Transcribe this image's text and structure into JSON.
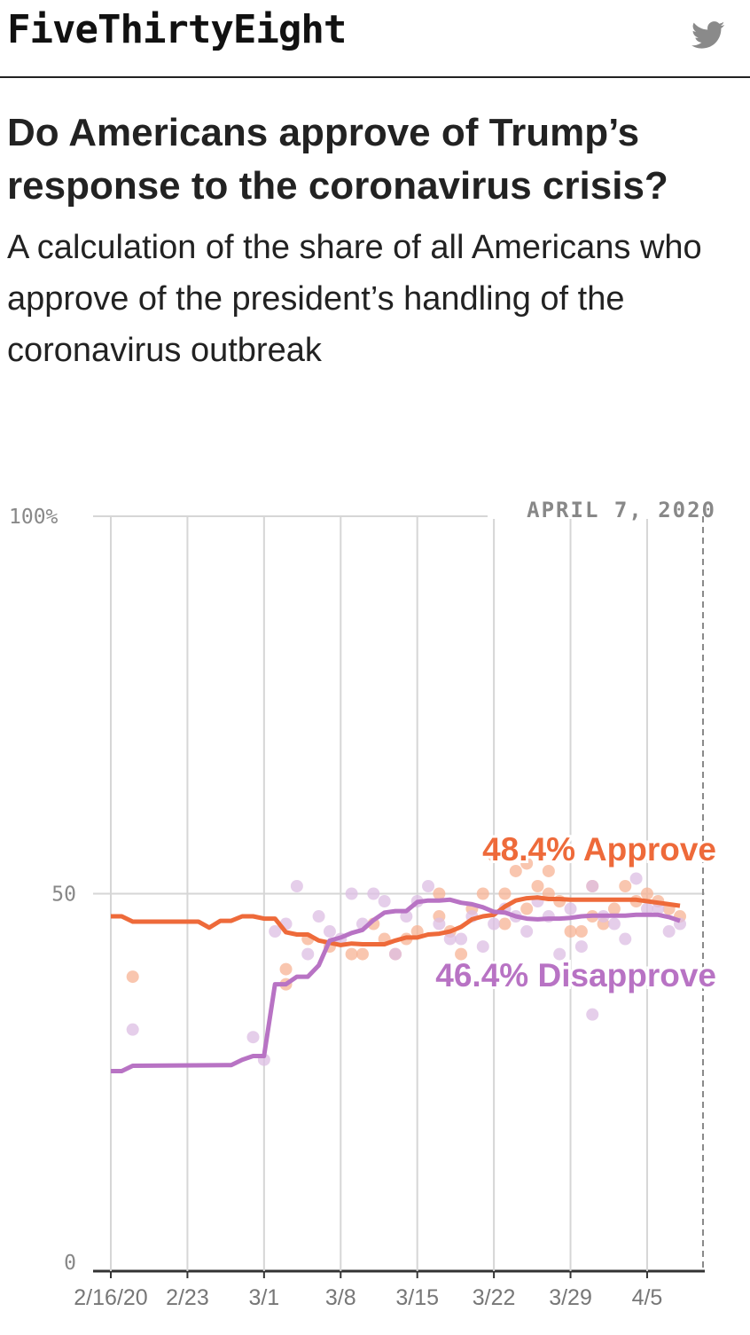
{
  "header": {
    "logo": "FiveThirtyEight",
    "share_icon": "twitter-icon"
  },
  "article": {
    "title": "Do Americans approve of Trump’s response to the coronavirus crisis?",
    "subtitle": "A calculation of the share of all Americans who approve of the president’s handling of the coronavirus outbreak"
  },
  "colors": {
    "approve": "#ee6a3a",
    "disapprove": "#b873c4",
    "grid": "#d6d6d6"
  },
  "chart_data": {
    "type": "line",
    "date_label": "APRIL 7, 2020",
    "x_ticks": [
      "2/16/20",
      "2/23",
      "3/1",
      "3/8",
      "3/15",
      "3/22",
      "3/29",
      "4/5"
    ],
    "x_range": [
      0,
      52
    ],
    "y_ticks": [
      "100%",
      "50",
      "0"
    ],
    "ylim": [
      0,
      100
    ],
    "series": [
      {
        "name": "Approve",
        "label": "48.4% Approve",
        "values": [
          [
            0,
            47
          ],
          [
            1,
            47
          ],
          [
            2,
            46.3
          ],
          [
            8,
            46.3
          ],
          [
            9,
            45.5
          ],
          [
            10,
            46.4
          ],
          [
            11,
            46.4
          ],
          [
            12,
            47
          ],
          [
            13,
            47
          ],
          [
            14,
            46.7
          ],
          [
            15,
            46.7
          ],
          [
            16,
            44.9
          ],
          [
            17,
            44.6
          ],
          [
            18,
            44.6
          ],
          [
            19,
            43.8
          ],
          [
            20,
            43.5
          ],
          [
            21,
            43.2
          ],
          [
            22,
            43.4
          ],
          [
            23,
            43.3
          ],
          [
            24,
            43.3
          ],
          [
            25,
            43.3
          ],
          [
            26,
            43.8
          ],
          [
            27,
            44.2
          ],
          [
            28,
            44.2
          ],
          [
            29,
            44.6
          ],
          [
            30,
            44.7
          ],
          [
            31,
            45
          ],
          [
            32,
            45.6
          ],
          [
            33,
            46.6
          ],
          [
            34,
            47
          ],
          [
            35,
            47.2
          ],
          [
            36,
            48.3
          ],
          [
            37,
            49.1
          ],
          [
            38,
            49.4
          ],
          [
            39,
            49.5
          ],
          [
            40,
            49.3
          ],
          [
            41,
            49.3
          ],
          [
            42,
            49.2
          ],
          [
            43,
            49.2
          ],
          [
            44,
            49.2
          ],
          [
            45,
            49.2
          ],
          [
            46,
            49.2
          ],
          [
            47,
            49.2
          ],
          [
            48,
            49.2
          ],
          [
            49,
            49
          ],
          [
            50,
            48.8
          ],
          [
            51,
            48.6
          ],
          [
            52,
            48.4
          ]
        ]
      },
      {
        "name": "Disapprove",
        "label": "46.4% Disapprove",
        "values": [
          [
            0,
            26.5
          ],
          [
            1,
            26.5
          ],
          [
            2,
            27.2
          ],
          [
            11,
            27.3
          ],
          [
            12,
            28
          ],
          [
            13,
            28.5
          ],
          [
            14,
            28.5
          ],
          [
            15,
            38
          ],
          [
            16,
            38
          ],
          [
            17,
            39
          ],
          [
            18,
            39
          ],
          [
            19,
            40.5
          ],
          [
            20,
            43.8
          ],
          [
            21,
            44.2
          ],
          [
            22,
            44.8
          ],
          [
            23,
            45.2
          ],
          [
            24,
            46.5
          ],
          [
            25,
            47.5
          ],
          [
            26,
            47.7
          ],
          [
            27,
            47.7
          ],
          [
            28,
            48.9
          ],
          [
            29,
            49.1
          ],
          [
            30,
            49.1
          ],
          [
            31,
            49.2
          ],
          [
            32,
            48.8
          ],
          [
            33,
            48.6
          ],
          [
            34,
            48.2
          ],
          [
            35,
            47.6
          ],
          [
            36,
            47.5
          ],
          [
            37,
            47
          ],
          [
            38,
            46.7
          ],
          [
            39,
            46.6
          ],
          [
            40,
            46.7
          ],
          [
            41,
            46.7
          ],
          [
            42,
            46.8
          ],
          [
            43,
            47
          ],
          [
            44,
            47.1
          ],
          [
            45,
            47.1
          ],
          [
            46,
            47.1
          ],
          [
            47,
            47.1
          ],
          [
            48,
            47.2
          ],
          [
            49,
            47.2
          ],
          [
            50,
            47.2
          ],
          [
            51,
            46.9
          ],
          [
            52,
            46.4
          ]
        ]
      }
    ],
    "poll_points": {
      "approve": [
        [
          2,
          39
        ],
        [
          16,
          38
        ],
        [
          16,
          40
        ],
        [
          18,
          44
        ],
        [
          20,
          43
        ],
        [
          22,
          42
        ],
        [
          23,
          42
        ],
        [
          24,
          46
        ],
        [
          25,
          44
        ],
        [
          26,
          42
        ],
        [
          27,
          44
        ],
        [
          28,
          45
        ],
        [
          30,
          47
        ],
        [
          31,
          45
        ],
        [
          32,
          42
        ],
        [
          33,
          48
        ],
        [
          34,
          50
        ],
        [
          35,
          55
        ],
        [
          36,
          50
        ],
        [
          37,
          53
        ],
        [
          38,
          54
        ],
        [
          38,
          48
        ],
        [
          39,
          51
        ],
        [
          40,
          50
        ],
        [
          41,
          49
        ],
        [
          42,
          45
        ],
        [
          43,
          45
        ],
        [
          44,
          47
        ],
        [
          45,
          46
        ],
        [
          46,
          48
        ],
        [
          47,
          51
        ],
        [
          48,
          49
        ],
        [
          49,
          50
        ],
        [
          50,
          49
        ],
        [
          51,
          48
        ],
        [
          52,
          47
        ],
        [
          30,
          50
        ],
        [
          36,
          46
        ],
        [
          40,
          53
        ],
        [
          44,
          51
        ]
      ],
      "disapprove": [
        [
          2,
          32
        ],
        [
          13,
          31
        ],
        [
          14,
          28
        ],
        [
          15,
          45
        ],
        [
          16,
          46
        ],
        [
          17,
          51
        ],
        [
          18,
          42
        ],
        [
          19,
          47
        ],
        [
          20,
          45
        ],
        [
          21,
          44
        ],
        [
          22,
          50
        ],
        [
          23,
          46
        ],
        [
          24,
          50
        ],
        [
          25,
          49
        ],
        [
          26,
          42
        ],
        [
          27,
          47
        ],
        [
          28,
          49
        ],
        [
          29,
          51
        ],
        [
          30,
          46
        ],
        [
          31,
          44
        ],
        [
          32,
          44
        ],
        [
          33,
          47
        ],
        [
          34,
          43
        ],
        [
          35,
          46
        ],
        [
          36,
          48
        ],
        [
          37,
          47
        ],
        [
          38,
          45
        ],
        [
          39,
          49
        ],
        [
          40,
          47
        ],
        [
          41,
          42
        ],
        [
          42,
          48
        ],
        [
          43,
          43
        ],
        [
          44,
          51
        ],
        [
          45,
          47
        ],
        [
          46,
          46
        ],
        [
          47,
          44
        ],
        [
          48,
          52
        ],
        [
          49,
          48
        ],
        [
          50,
          48
        ],
        [
          51,
          45
        ],
        [
          52,
          46
        ],
        [
          44,
          34
        ]
      ]
    }
  }
}
